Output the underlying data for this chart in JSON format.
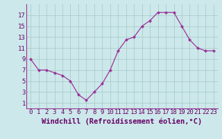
{
  "hours": [
    0,
    1,
    2,
    3,
    4,
    5,
    6,
    7,
    8,
    9,
    10,
    11,
    12,
    13,
    14,
    15,
    16,
    17,
    18,
    19,
    20,
    21,
    22,
    23
  ],
  "values": [
    9,
    7,
    7,
    6.5,
    6,
    5,
    2.5,
    1.5,
    3,
    4.5,
    7,
    10.5,
    12.5,
    13,
    15,
    16,
    17.5,
    17.5,
    17.5,
    15,
    12.5,
    11,
    10.5,
    10.5
  ],
  "xlabel": "Windchill (Refroidissement éolien,°C)",
  "line_color": "#993399",
  "marker_color": "#993399",
  "bg_color": "#cce8ea",
  "grid_color": "#aacccc",
  "spine_color": "#993399",
  "ylim": [
    0,
    19
  ],
  "yticks": [
    1,
    3,
    5,
    7,
    9,
    11,
    13,
    15,
    17
  ],
  "xlim": [
    -0.5,
    23.5
  ],
  "xticks": [
    0,
    1,
    2,
    3,
    4,
    5,
    6,
    7,
    8,
    9,
    10,
    11,
    12,
    13,
    14,
    15,
    16,
    17,
    18,
    19,
    20,
    21,
    22,
    23
  ],
  "tick_fontsize": 6.5,
  "xlabel_fontsize": 7.5,
  "label_color": "#660066"
}
